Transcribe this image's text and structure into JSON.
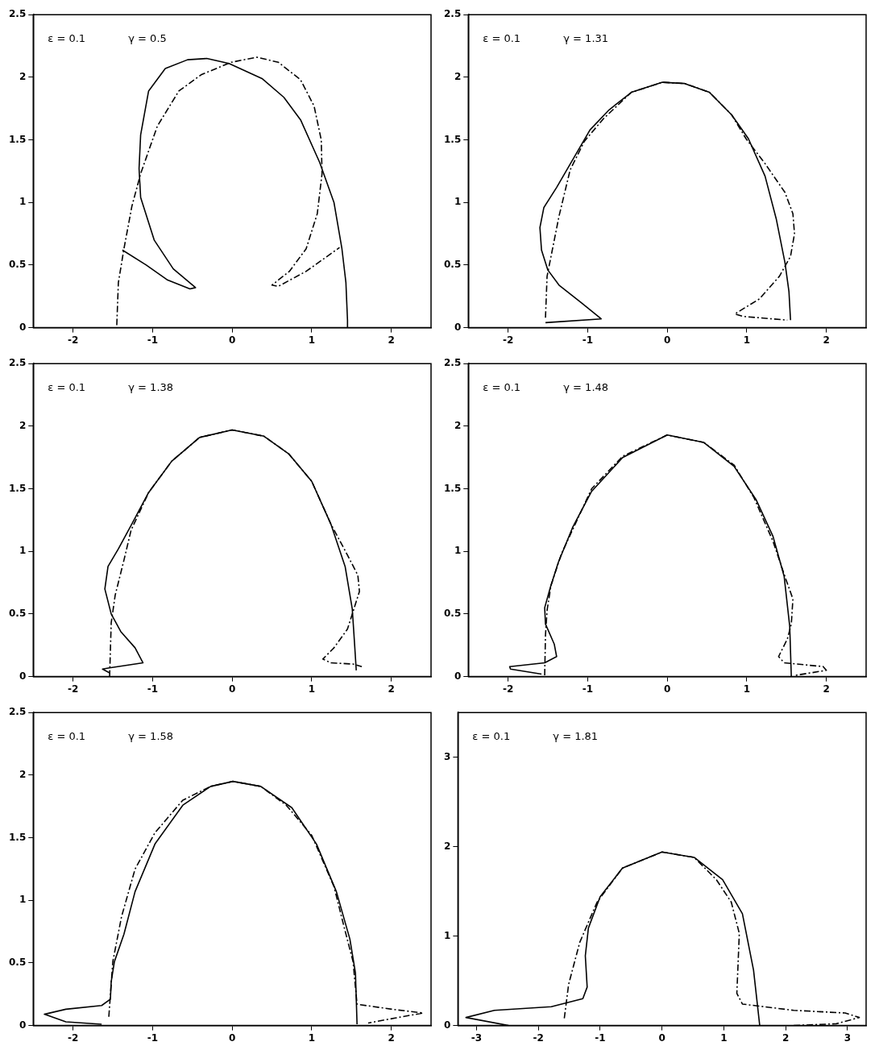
{
  "chart_data": [
    {
      "type": "line",
      "annotations": [
        "ε = 0.1",
        "γ = 0.5"
      ],
      "xlim": [
        -2.5,
        2.5
      ],
      "xticks": [
        -2,
        -1,
        0,
        1,
        2
      ],
      "ylim": [
        0,
        2.5
      ],
      "yticks": [
        0,
        0.5,
        1,
        1.5,
        2,
        2.5
      ],
      "grid": false,
      "legend": false,
      "marker": "none",
      "series": [
        {
          "color": "#000000",
          "line_style": "solid",
          "x": [
            -1.38,
            -1.08,
            -0.81,
            -0.53,
            -0.46,
            -0.74,
            -0.98,
            -1.15,
            -1.17,
            -1.15,
            -1.05,
            -0.84,
            -0.56,
            -0.32,
            -0.04,
            0.375,
            0.65,
            0.86,
            1.1,
            1.28,
            1.38,
            1.43,
            1.45,
            1.45
          ],
          "values": [
            0.62,
            0.5,
            0.38,
            0.31,
            0.32,
            0.47,
            0.7,
            1.04,
            1.27,
            1.54,
            1.89,
            2.07,
            2.14,
            2.15,
            2.11,
            1.99,
            1.84,
            1.66,
            1.32,
            1.0,
            0.63,
            0.36,
            0.06,
            0
          ]
        },
        {
          "color": "#000000",
          "line_style": "dashed",
          "x": [
            -1.45,
            -1.43,
            -1.36,
            -1.26,
            -1.15,
            -0.94,
            -0.67,
            -0.39,
            -0.01,
            0.31,
            0.58,
            0.86,
            1.03,
            1.12,
            1.13,
            1.07,
            0.93,
            0.72,
            0.5,
            0.58,
            0.93,
            1.35
          ],
          "values": [
            0.02,
            0.36,
            0.63,
            0.97,
            1.23,
            1.61,
            1.89,
            2.02,
            2.12,
            2.16,
            2.12,
            1.98,
            1.77,
            1.5,
            1.23,
            0.91,
            0.63,
            0.45,
            0.34,
            0.33,
            0.45,
            0.64
          ]
        }
      ]
    },
    {
      "type": "line",
      "annotations": [
        "ε = 0.1",
        "γ = 1.31"
      ],
      "xlim": [
        -2.5,
        2.5
      ],
      "xticks": [
        -2,
        -1,
        0,
        1,
        2
      ],
      "ylim": [
        0,
        2.5
      ],
      "yticks": [
        0,
        0.5,
        1,
        1.5,
        2,
        2.5
      ],
      "grid": false,
      "legend": false,
      "marker": "none",
      "series": [
        {
          "color": "#000000",
          "line_style": "solid",
          "x": [
            -1.53,
            -0.83,
            -1.08,
            -1.36,
            -1.5,
            -1.58,
            -1.6,
            -1.55,
            -1.39,
            -1.18,
            -0.97,
            -0.73,
            -0.45,
            -0.06,
            0.22,
            0.53,
            0.81,
            1.02,
            1.23,
            1.37,
            1.48,
            1.53,
            1.55
          ],
          "values": [
            0.04,
            0.07,
            0.2,
            0.34,
            0.46,
            0.62,
            0.8,
            0.96,
            1.12,
            1.35,
            1.58,
            1.74,
            1.88,
            1.96,
            1.95,
            1.88,
            1.7,
            1.51,
            1.21,
            0.87,
            0.52,
            0.29,
            0.06
          ]
        },
        {
          "color": "#000000",
          "line_style": "dashed",
          "x": [
            -1.53,
            -1.51,
            -1.46,
            -1.36,
            -1.22,
            -1.04,
            -0.8,
            -0.45,
            -0.06,
            0.22,
            0.53,
            0.81,
            0.99,
            1.23,
            1.48,
            1.58,
            1.6,
            1.55,
            1.41,
            1.16,
            0.85,
            0.95,
            1.51
          ],
          "values": [
            0.08,
            0.41,
            0.57,
            0.89,
            1.26,
            1.49,
            1.67,
            1.88,
            1.96,
            1.95,
            1.88,
            1.7,
            1.51,
            1.31,
            1.08,
            0.91,
            0.75,
            0.57,
            0.41,
            0.23,
            0.11,
            0.09,
            0.06
          ]
        }
      ]
    },
    {
      "type": "line",
      "annotations": [
        "ε = 0.1",
        "γ = 1.38"
      ],
      "xlim": [
        -2.5,
        2.5
      ],
      "xticks": [
        -2,
        -1,
        0,
        1,
        2
      ],
      "ylim": [
        0,
        2.5
      ],
      "yticks": [
        0,
        0.5,
        1,
        1.5,
        2,
        2.5
      ],
      "grid": false,
      "legend": false,
      "marker": "none",
      "series": [
        {
          "color": "#000000",
          "line_style": "solid",
          "x": [
            -1.54,
            -1.63,
            -1.54,
            -1.12,
            -1.22,
            -1.4,
            -1.52,
            -1.6,
            -1.56,
            -1.43,
            -1.26,
            -1.05,
            -0.76,
            -0.41,
            0,
            0.4,
            0.71,
            1.0,
            1.24,
            1.42,
            1.51,
            1.54,
            1.56
          ],
          "values": [
            0.03,
            0.06,
            0.07,
            0.11,
            0.23,
            0.36,
            0.5,
            0.7,
            0.88,
            1.02,
            1.22,
            1.47,
            1.72,
            1.91,
            1.97,
            1.92,
            1.78,
            1.56,
            1.22,
            0.88,
            0.54,
            0.25,
            0.05
          ]
        },
        {
          "color": "#000000",
          "line_style": "dashed",
          "x": [
            -1.54,
            -1.52,
            -1.47,
            -1.36,
            -1.27,
            -1.05,
            -0.76,
            -0.41,
            0,
            0.4,
            0.71,
            1.0,
            1.24,
            1.45,
            1.58,
            1.6,
            1.52,
            1.45,
            1.28,
            1.14,
            1.24,
            1.52,
            1.63
          ],
          "values": [
            0,
            0.43,
            0.65,
            0.93,
            1.17,
            1.47,
            1.72,
            1.91,
            1.97,
            1.92,
            1.78,
            1.56,
            1.22,
            0.97,
            0.81,
            0.68,
            0.52,
            0.38,
            0.23,
            0.14,
            0.11,
            0.1,
            0.08
          ]
        }
      ]
    },
    {
      "type": "line",
      "annotations": [
        "ε = 0.1",
        "γ = 1.48"
      ],
      "xlim": [
        -2.5,
        2.5
      ],
      "xticks": [
        -2,
        -1,
        0,
        1,
        2
      ],
      "ylim": [
        0,
        2.5
      ],
      "yticks": [
        0,
        0.5,
        1,
        1.5,
        2,
        2.5
      ],
      "grid": false,
      "legend": false,
      "marker": "none",
      "series": [
        {
          "color": "#000000",
          "line_style": "solid",
          "x": [
            -1.58,
            -1.97,
            -1.98,
            -1.54,
            -1.39,
            -1.42,
            -1.53,
            -1.54,
            -1.47,
            -1.37,
            -1.19,
            -0.95,
            -0.56,
            0,
            0.46,
            0.84,
            1.12,
            1.33,
            1.47,
            1.54,
            1.56
          ],
          "values": [
            0.02,
            0.06,
            0.08,
            0.11,
            0.16,
            0.26,
            0.42,
            0.55,
            0.71,
            0.91,
            1.19,
            1.48,
            1.75,
            1.93,
            1.87,
            1.68,
            1.41,
            1.12,
            0.8,
            0.4,
            0
          ]
        },
        {
          "color": "#000000",
          "line_style": "dashed",
          "x": [
            -1.54,
            -1.53,
            -1.51,
            -1.46,
            -1.33,
            -0.95,
            -0.56,
            0,
            0.46,
            0.84,
            1.09,
            1.33,
            1.49,
            1.58,
            1.56,
            1.51,
            1.4,
            1.47,
            1.96,
            2.0,
            1.61
          ],
          "values": [
            0.01,
            0.33,
            0.53,
            0.73,
            0.98,
            1.5,
            1.76,
            1.93,
            1.87,
            1.69,
            1.43,
            1.08,
            0.78,
            0.62,
            0.42,
            0.3,
            0.16,
            0.11,
            0.08,
            0.05,
            0.01
          ]
        }
      ]
    },
    {
      "type": "line",
      "annotations": [
        "ε = 0.1",
        "γ = 1.58"
      ],
      "xlim": [
        -2.5,
        2.5
      ],
      "xticks": [
        -2,
        -1,
        0,
        1,
        2
      ],
      "ylim": [
        0,
        2.5
      ],
      "yticks": [
        0,
        0.5,
        1,
        1.5,
        2,
        2.5
      ],
      "grid": false,
      "legend": false,
      "marker": "none",
      "series": [
        {
          "color": "#000000",
          "line_style": "solid",
          "x": [
            -1.64,
            -2.09,
            -2.36,
            -2.09,
            -1.64,
            -1.53,
            -1.52,
            -1.48,
            -1.36,
            -1.22,
            -0.97,
            -0.62,
            -0.27,
            0.01,
            0.36,
            0.75,
            1.06,
            1.31,
            1.48,
            1.55,
            1.57
          ],
          "values": [
            0.01,
            0.03,
            0.09,
            0.13,
            0.16,
            0.21,
            0.35,
            0.51,
            0.73,
            1.07,
            1.45,
            1.76,
            1.91,
            1.95,
            1.91,
            1.74,
            1.45,
            1.07,
            0.69,
            0.42,
            0.01
          ]
        },
        {
          "color": "#000000",
          "line_style": "dashed",
          "x": [
            -1.55,
            -1.5,
            -1.39,
            -1.22,
            -0.97,
            -0.62,
            -0.27,
            0.01,
            0.36,
            0.68,
            1.0,
            1.28,
            1.41,
            1.52,
            1.57,
            2.01,
            2.4,
            2.05,
            1.71
          ],
          "values": [
            0.07,
            0.51,
            0.87,
            1.25,
            1.54,
            1.8,
            1.91,
            1.95,
            1.91,
            1.76,
            1.52,
            1.11,
            0.78,
            0.51,
            0.17,
            0.13,
            0.1,
            0.06,
            0.02
          ]
        }
      ]
    },
    {
      "type": "line",
      "annotations": [
        "ε = 0.1",
        "γ = 1.81"
      ],
      "xlim": [
        -3.3,
        3.3
      ],
      "xticks": [
        -3,
        -2,
        -1,
        0,
        1,
        2,
        3
      ],
      "ylim": [
        0,
        3.5
      ],
      "yticks": [
        0,
        1,
        2,
        3
      ],
      "grid": false,
      "legend": false,
      "marker": "none",
      "series": [
        {
          "color": "#000000",
          "line_style": "solid",
          "x": [
            -2.48,
            -3.17,
            -2.71,
            -1.79,
            -1.28,
            -1.21,
            -1.24,
            -1.19,
            -1.0,
            -0.64,
            0,
            0.52,
            0.98,
            1.3,
            1.48,
            1.58
          ],
          "values": [
            0,
            0.09,
            0.17,
            0.21,
            0.3,
            0.43,
            0.78,
            1.09,
            1.44,
            1.76,
            1.94,
            1.88,
            1.63,
            1.25,
            0.62,
            0
          ]
        },
        {
          "color": "#000000",
          "line_style": "dashed",
          "x": [
            -1.58,
            -1.51,
            -1.33,
            -1.05,
            -0.64,
            0,
            0.52,
            0.88,
            1.12,
            1.25,
            1.21,
            1.3,
            2.13,
            2.96,
            3.19,
            2.82,
            2.13
          ],
          "values": [
            0.08,
            0.46,
            0.93,
            1.38,
            1.76,
            1.94,
            1.88,
            1.63,
            1.38,
            1.03,
            0.36,
            0.24,
            0.17,
            0.14,
            0.09,
            0.02,
            0
          ]
        }
      ]
    }
  ]
}
